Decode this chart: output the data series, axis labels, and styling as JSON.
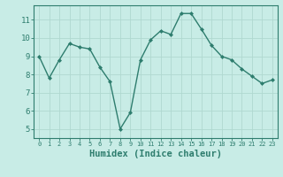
{
  "x": [
    0,
    1,
    2,
    3,
    4,
    5,
    6,
    7,
    8,
    9,
    10,
    11,
    12,
    13,
    14,
    15,
    16,
    17,
    18,
    19,
    20,
    21,
    22,
    23
  ],
  "y": [
    9.0,
    7.8,
    8.8,
    9.7,
    9.5,
    9.4,
    8.4,
    7.6,
    5.0,
    5.9,
    8.8,
    9.9,
    10.4,
    10.2,
    11.35,
    11.35,
    10.5,
    9.6,
    9.0,
    8.8,
    8.3,
    7.9,
    7.5,
    7.7
  ],
  "line_color": "#2e7d6e",
  "marker": "D",
  "marker_size": 2.0,
  "bg_color": "#c8ece6",
  "grid_color": "#b0d8d0",
  "xlabel": "Humidex (Indice chaleur)",
  "xlabel_fontsize": 7.5,
  "tick_color": "#2e7d6e",
  "axis_color": "#2e7d6e",
  "xlim": [
    -0.5,
    23.5
  ],
  "ylim": [
    4.5,
    11.8
  ],
  "yticks": [
    5,
    6,
    7,
    8,
    9,
    10,
    11
  ],
  "xticks": [
    0,
    1,
    2,
    3,
    4,
    5,
    6,
    7,
    8,
    9,
    10,
    11,
    12,
    13,
    14,
    15,
    16,
    17,
    18,
    19,
    20,
    21,
    22,
    23
  ],
  "linewidth": 1.0
}
